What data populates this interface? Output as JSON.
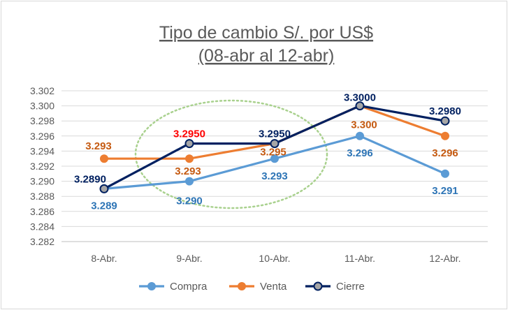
{
  "chart_data": {
    "type": "line",
    "title": "Tipo de cambio S/. por US$",
    "subtitle": "(08-abr al 12-abr)",
    "categories": [
      "8-Abr.",
      "9-Abr.",
      "10-Abr.",
      "11-Abr.",
      "12-Abr."
    ],
    "ylim": [
      3.282,
      3.302
    ],
    "yticks": [
      "3.282",
      "3.284",
      "3.286",
      "3.288",
      "3.290",
      "3.292",
      "3.294",
      "3.296",
      "3.298",
      "3.300",
      "3.302"
    ],
    "grid": true,
    "legend_position": "bottom",
    "series": [
      {
        "name": "Compra",
        "color": "#5b9bd5",
        "values": [
          3.289,
          3.29,
          3.293,
          3.296,
          3.291
        ],
        "labels": [
          "3.289",
          "3.290",
          "3.293",
          "3.296",
          "3.291"
        ],
        "label_colors": [
          "#2e75b6",
          "#2e75b6",
          "#2e75b6",
          "#2e75b6",
          "#2e75b6"
        ]
      },
      {
        "name": "Venta",
        "color": "#ed7d31",
        "values": [
          3.293,
          3.293,
          3.295,
          3.3,
          3.296
        ],
        "labels": [
          "3.293",
          "3.293",
          "3.295",
          "3.300",
          "3.296"
        ],
        "label_colors": [
          "#c55a11",
          "#c55a11",
          "#c55a11",
          "#c55a11",
          "#c55a11"
        ]
      },
      {
        "name": "Cierre",
        "color": "#002060",
        "values": [
          3.289,
          3.295,
          3.295,
          3.3,
          3.298
        ],
        "labels": [
          "3.2890",
          "3.2950",
          "3.2950",
          "3.3000",
          "3.2980"
        ],
        "label_colors": [
          "#002060",
          "#ff0000",
          "#002060",
          "#002060",
          "#002060"
        ]
      }
    ],
    "annotation": "green dotted ellipse highlighting 9-Abr. to 10-Abr."
  }
}
